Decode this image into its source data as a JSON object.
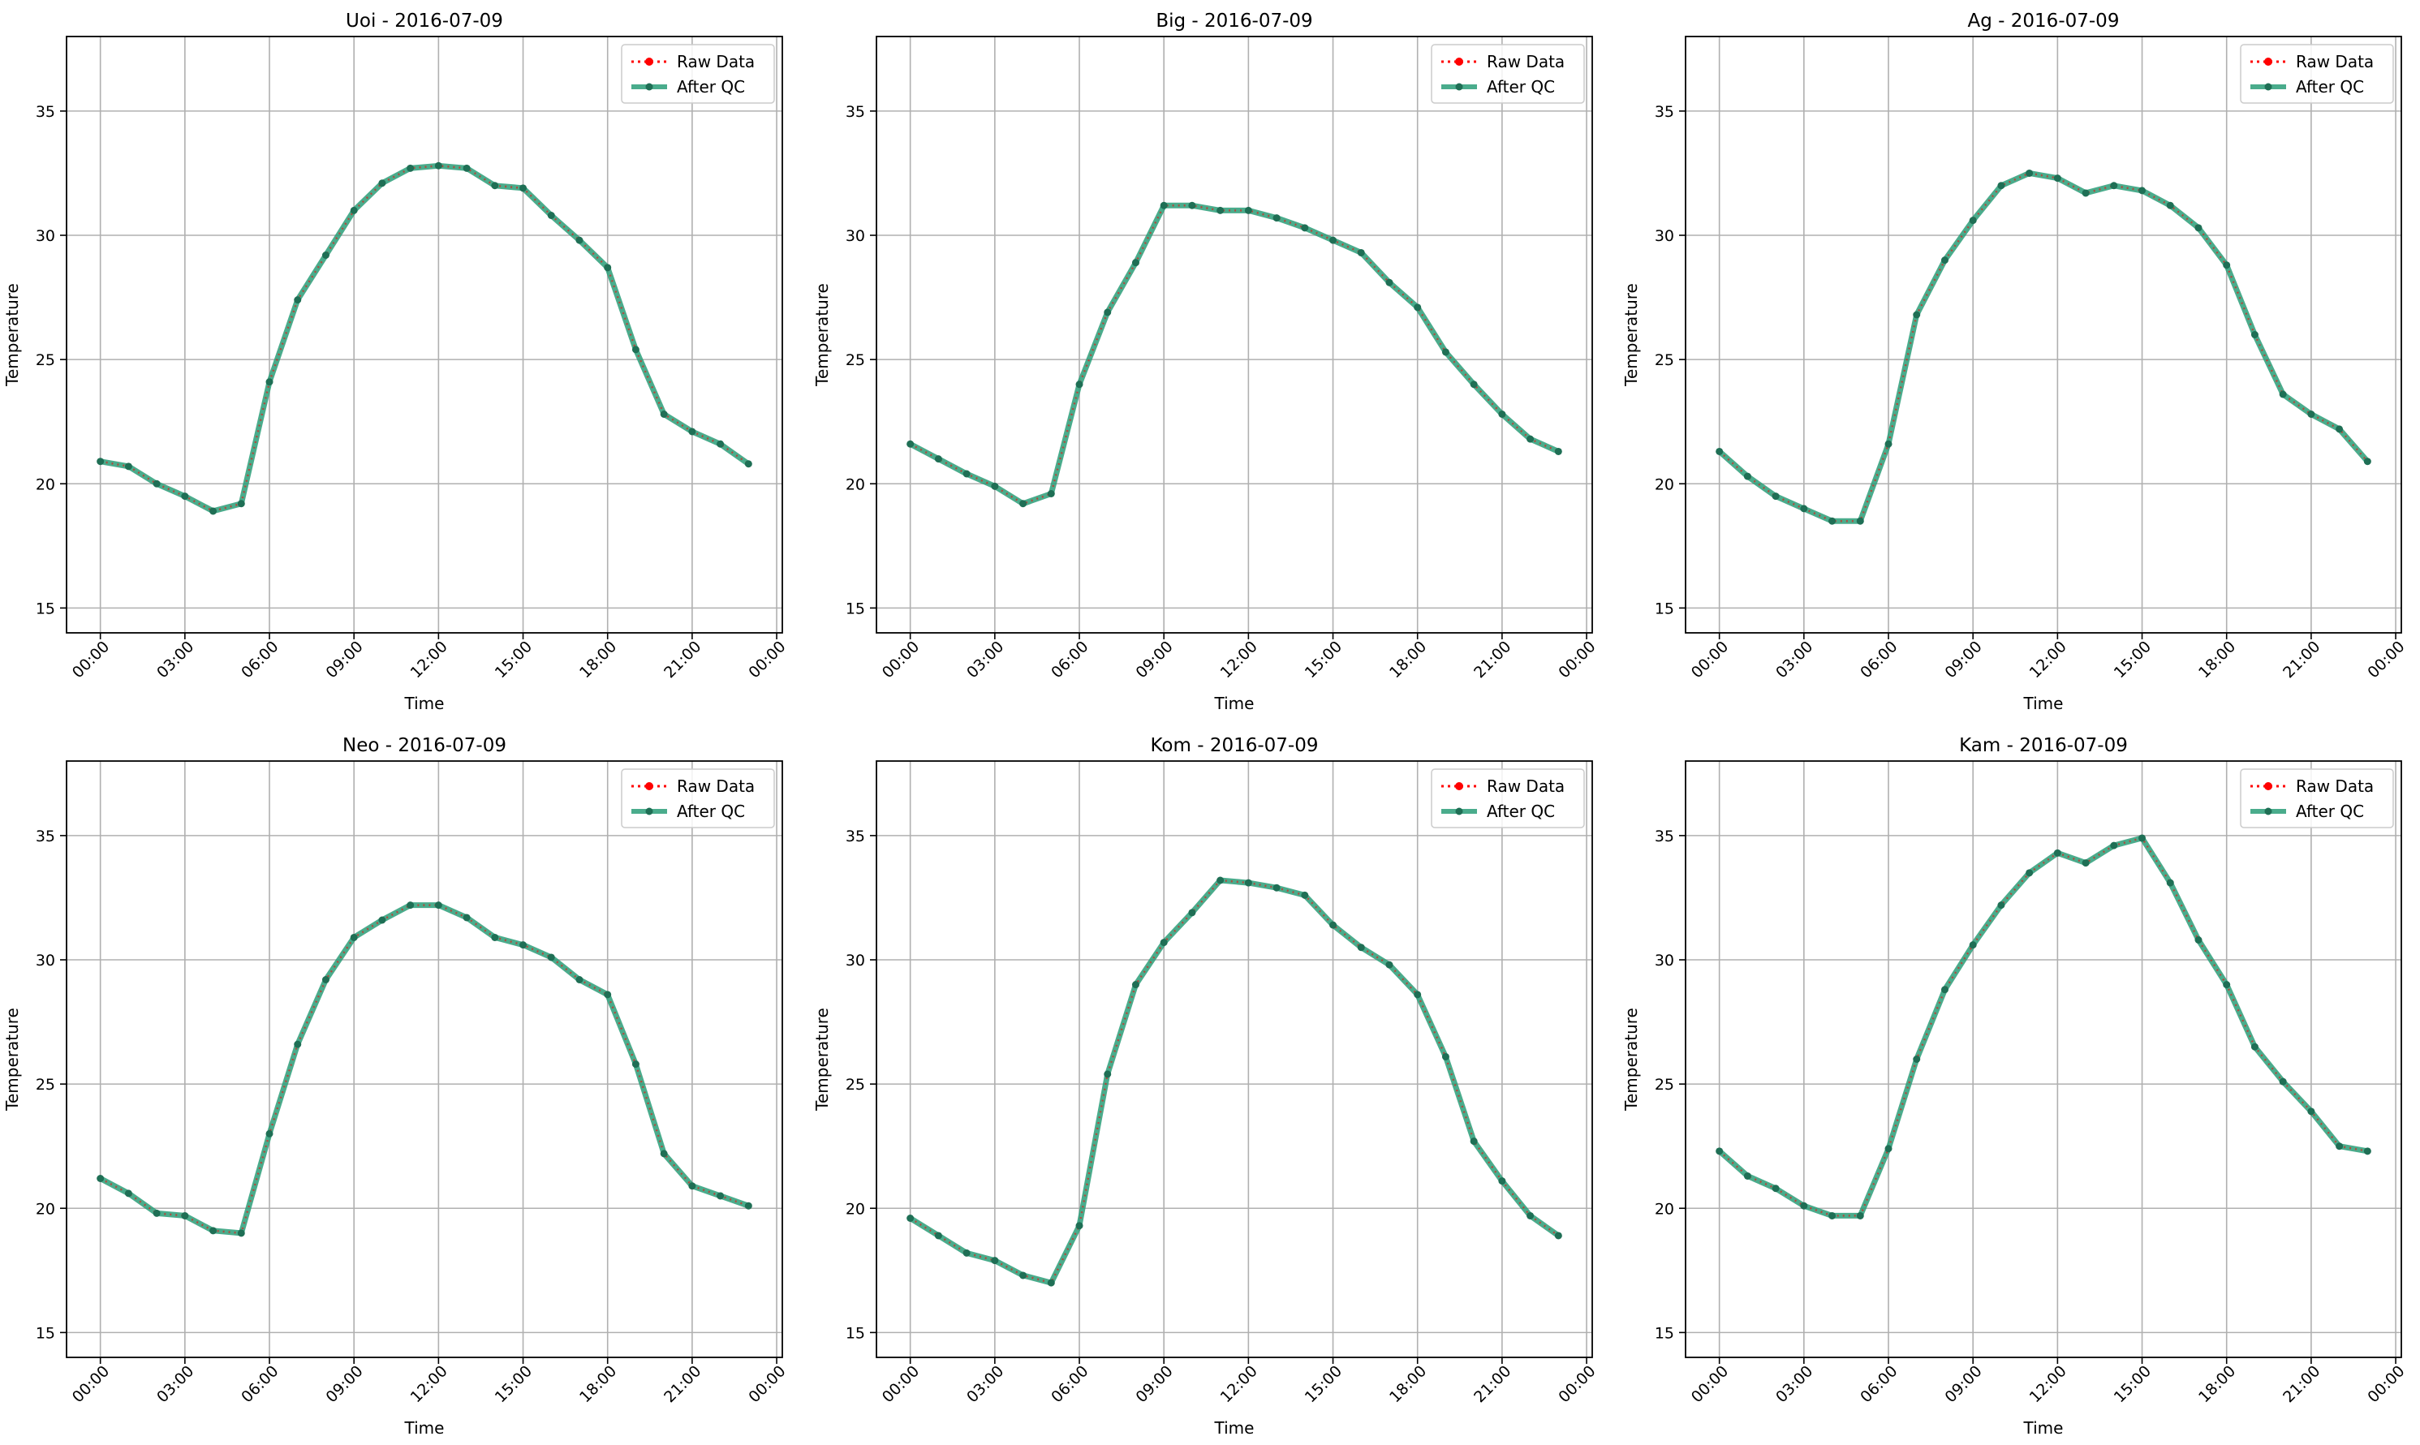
{
  "chart_data": [
    {
      "type": "line",
      "title": "Uoi - 2016-07-09",
      "xlabel": "Time",
      "ylabel": "Temperature",
      "x_tick_labels": [
        "00:00",
        "03:00",
        "06:00",
        "09:00",
        "12:00",
        "15:00",
        "18:00",
        "21:00",
        "00:00"
      ],
      "y_ticks": [
        15,
        20,
        25,
        30,
        35
      ],
      "ylim": [
        14,
        38
      ],
      "grid": true,
      "legend_position": "top-right",
      "x_hours": [
        0,
        1,
        2,
        3,
        4,
        5,
        6,
        7,
        8,
        9,
        10,
        11,
        12,
        13,
        14,
        15,
        16,
        17,
        18,
        19,
        20,
        21,
        22,
        23
      ],
      "series": [
        {
          "name": "Raw Data",
          "color": "#ff0000",
          "style": "dotted-markers",
          "values": [
            20.9,
            20.7,
            20.0,
            19.5,
            18.9,
            19.2,
            24.1,
            27.4,
            29.2,
            31.0,
            32.1,
            32.7,
            32.8,
            32.7,
            32.0,
            31.9,
            30.8,
            29.8,
            28.7,
            25.4,
            22.8,
            22.1,
            21.6,
            20.8
          ]
        },
        {
          "name": "After QC",
          "color": "#2a9d78",
          "style": "solid-markers",
          "values": [
            20.9,
            20.7,
            20.0,
            19.5,
            18.9,
            19.2,
            24.1,
            27.4,
            29.2,
            31.0,
            32.1,
            32.7,
            32.8,
            32.7,
            32.0,
            31.9,
            30.8,
            29.8,
            28.7,
            25.4,
            22.8,
            22.1,
            21.6,
            20.8
          ]
        }
      ]
    },
    {
      "type": "line",
      "title": "Big - 2016-07-09",
      "xlabel": "Time",
      "ylabel": "Temperature",
      "x_tick_labels": [
        "00:00",
        "03:00",
        "06:00",
        "09:00",
        "12:00",
        "15:00",
        "18:00",
        "21:00",
        "00:00"
      ],
      "y_ticks": [
        15,
        20,
        25,
        30,
        35
      ],
      "ylim": [
        14,
        38
      ],
      "grid": true,
      "legend_position": "top-right",
      "x_hours": [
        0,
        1,
        2,
        3,
        4,
        5,
        6,
        7,
        8,
        9,
        10,
        11,
        12,
        13,
        14,
        15,
        16,
        17,
        18,
        19,
        20,
        21,
        22,
        23
      ],
      "series": [
        {
          "name": "Raw Data",
          "color": "#ff0000",
          "style": "dotted-markers",
          "values": [
            21.6,
            21.0,
            20.4,
            19.9,
            19.2,
            19.6,
            24.0,
            26.9,
            28.9,
            31.2,
            31.2,
            31.0,
            31.0,
            30.7,
            30.3,
            29.8,
            29.3,
            28.1,
            27.1,
            25.3,
            24.0,
            22.8,
            21.8,
            21.3
          ]
        },
        {
          "name": "After QC",
          "color": "#2a9d78",
          "style": "solid-markers",
          "values": [
            21.6,
            21.0,
            20.4,
            19.9,
            19.2,
            19.6,
            24.0,
            26.9,
            28.9,
            31.2,
            31.2,
            31.0,
            31.0,
            30.7,
            30.3,
            29.8,
            29.3,
            28.1,
            27.1,
            25.3,
            24.0,
            22.8,
            21.8,
            21.3
          ]
        }
      ]
    },
    {
      "type": "line",
      "title": "Ag - 2016-07-09",
      "xlabel": "Time",
      "ylabel": "Temperature",
      "x_tick_labels": [
        "00:00",
        "03:00",
        "06:00",
        "09:00",
        "12:00",
        "15:00",
        "18:00",
        "21:00",
        "00:00"
      ],
      "y_ticks": [
        15,
        20,
        25,
        30,
        35
      ],
      "ylim": [
        14,
        38
      ],
      "grid": true,
      "legend_position": "top-right",
      "x_hours": [
        0,
        1,
        2,
        3,
        4,
        5,
        6,
        7,
        8,
        9,
        10,
        11,
        12,
        13,
        14,
        15,
        16,
        17,
        18,
        19,
        20,
        21,
        22,
        23
      ],
      "series": [
        {
          "name": "Raw Data",
          "color": "#ff0000",
          "style": "dotted-markers",
          "values": [
            21.3,
            20.3,
            19.5,
            19.0,
            18.5,
            18.5,
            21.6,
            26.8,
            29.0,
            30.6,
            32.0,
            32.5,
            32.3,
            31.7,
            32.0,
            31.8,
            31.2,
            30.3,
            28.8,
            26.0,
            23.6,
            22.8,
            22.2,
            20.9
          ]
        },
        {
          "name": "After QC",
          "color": "#2a9d78",
          "style": "solid-markers",
          "values": [
            21.3,
            20.3,
            19.5,
            19.0,
            18.5,
            18.5,
            21.6,
            26.8,
            29.0,
            30.6,
            32.0,
            32.5,
            32.3,
            31.7,
            32.0,
            31.8,
            31.2,
            30.3,
            28.8,
            26.0,
            23.6,
            22.8,
            22.2,
            20.9
          ]
        }
      ]
    },
    {
      "type": "line",
      "title": "Neo - 2016-07-09",
      "xlabel": "Time",
      "ylabel": "Temperature",
      "x_tick_labels": [
        "00:00",
        "03:00",
        "06:00",
        "09:00",
        "12:00",
        "15:00",
        "18:00",
        "21:00",
        "00:00"
      ],
      "y_ticks": [
        15,
        20,
        25,
        30,
        35
      ],
      "ylim": [
        14,
        38
      ],
      "grid": true,
      "legend_position": "top-right",
      "x_hours": [
        0,
        1,
        2,
        3,
        4,
        5,
        6,
        7,
        8,
        9,
        10,
        11,
        12,
        13,
        14,
        15,
        16,
        17,
        18,
        19,
        20,
        21,
        22,
        23
      ],
      "series": [
        {
          "name": "Raw Data",
          "color": "#ff0000",
          "style": "dotted-markers",
          "values": [
            21.2,
            20.6,
            19.8,
            19.7,
            19.1,
            19.0,
            23.0,
            26.6,
            29.2,
            30.9,
            31.6,
            32.2,
            32.2,
            31.7,
            30.9,
            30.6,
            30.1,
            29.2,
            28.6,
            25.8,
            22.2,
            20.9,
            20.5,
            20.1
          ]
        },
        {
          "name": "After QC",
          "color": "#2a9d78",
          "style": "solid-markers",
          "values": [
            21.2,
            20.6,
            19.8,
            19.7,
            19.1,
            19.0,
            23.0,
            26.6,
            29.2,
            30.9,
            31.6,
            32.2,
            32.2,
            31.7,
            30.9,
            30.6,
            30.1,
            29.2,
            28.6,
            25.8,
            22.2,
            20.9,
            20.5,
            20.1
          ]
        }
      ]
    },
    {
      "type": "line",
      "title": "Kom - 2016-07-09",
      "xlabel": "Time",
      "ylabel": "Temperature",
      "x_tick_labels": [
        "00:00",
        "03:00",
        "06:00",
        "09:00",
        "12:00",
        "15:00",
        "18:00",
        "21:00",
        "00:00"
      ],
      "y_ticks": [
        15,
        20,
        25,
        30,
        35
      ],
      "ylim": [
        14,
        38
      ],
      "grid": true,
      "legend_position": "top-right",
      "x_hours": [
        0,
        1,
        2,
        3,
        4,
        5,
        6,
        7,
        8,
        9,
        10,
        11,
        12,
        13,
        14,
        15,
        16,
        17,
        18,
        19,
        20,
        21,
        22,
        23
      ],
      "series": [
        {
          "name": "Raw Data",
          "color": "#ff0000",
          "style": "dotted-markers",
          "values": [
            19.6,
            18.9,
            18.2,
            17.9,
            17.3,
            17.0,
            19.3,
            25.4,
            29.0,
            30.7,
            31.9,
            33.2,
            33.1,
            32.9,
            32.6,
            31.4,
            30.5,
            29.8,
            28.6,
            26.1,
            22.7,
            21.1,
            19.7,
            18.9
          ]
        },
        {
          "name": "After QC",
          "color": "#2a9d78",
          "style": "solid-markers",
          "values": [
            19.6,
            18.9,
            18.2,
            17.9,
            17.3,
            17.0,
            19.3,
            25.4,
            29.0,
            30.7,
            31.9,
            33.2,
            33.1,
            32.9,
            32.6,
            31.4,
            30.5,
            29.8,
            28.6,
            26.1,
            22.7,
            21.1,
            19.7,
            18.9
          ]
        }
      ]
    },
    {
      "type": "line",
      "title": "Kam - 2016-07-09",
      "xlabel": "Time",
      "ylabel": "Temperature",
      "x_tick_labels": [
        "00:00",
        "03:00",
        "06:00",
        "09:00",
        "12:00",
        "15:00",
        "18:00",
        "21:00",
        "00:00"
      ],
      "y_ticks": [
        15,
        20,
        25,
        30,
        35
      ],
      "ylim": [
        14,
        38
      ],
      "grid": true,
      "legend_position": "top-right",
      "x_hours": [
        0,
        1,
        2,
        3,
        4,
        5,
        6,
        7,
        8,
        9,
        10,
        11,
        12,
        13,
        14,
        15,
        16,
        17,
        18,
        19,
        20,
        21,
        22,
        23
      ],
      "series": [
        {
          "name": "Raw Data",
          "color": "#ff0000",
          "style": "dotted-markers",
          "values": [
            22.3,
            21.3,
            20.8,
            20.1,
            19.7,
            19.7,
            22.4,
            26.0,
            28.8,
            30.6,
            32.2,
            33.5,
            34.3,
            33.9,
            34.6,
            34.9,
            33.1,
            30.8,
            29.0,
            26.5,
            25.1,
            23.9,
            22.5,
            22.3
          ]
        },
        {
          "name": "After QC",
          "color": "#2a9d78",
          "style": "solid-markers",
          "values": [
            22.3,
            21.3,
            20.8,
            20.1,
            19.7,
            19.7,
            22.4,
            26.0,
            28.8,
            30.6,
            32.2,
            33.5,
            34.3,
            33.9,
            34.6,
            34.9,
            33.1,
            30.8,
            29.0,
            26.5,
            25.1,
            23.9,
            22.5,
            22.3
          ]
        }
      ]
    }
  ]
}
